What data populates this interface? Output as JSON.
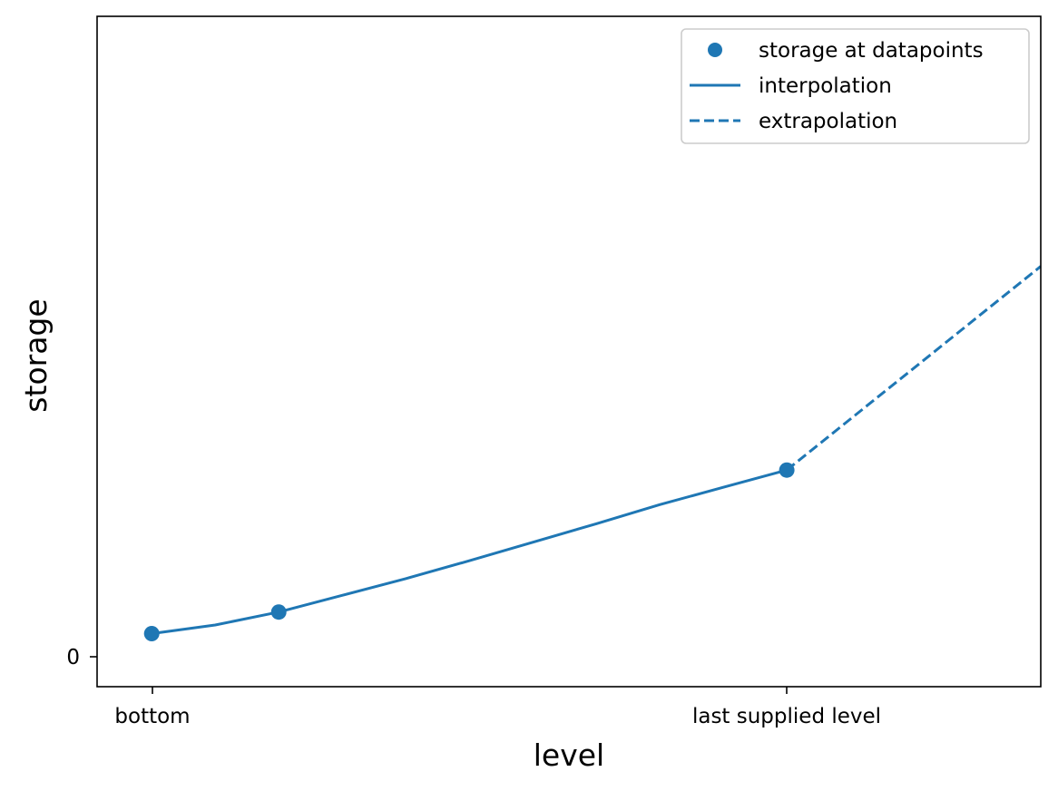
{
  "chart_data": {
    "type": "line",
    "xlabel": "level",
    "ylabel": "storage",
    "x_ticks": [
      "bottom",
      "last supplied level"
    ],
    "y_ticks": [
      "0"
    ],
    "color": "#1f77b4",
    "legend_position": "upper-right",
    "grid": false,
    "xlim": [
      -0.086,
      1.4
    ],
    "ylim": [
      -0.086,
      1.0
    ],
    "datapoints": {
      "name": "storage at datapoints",
      "x": [
        0.0,
        0.2,
        1.0
      ],
      "y": [
        0.0,
        0.035,
        0.265
      ]
    },
    "interpolation": {
      "name": "interpolation",
      "x": [
        0.0,
        0.1,
        0.2,
        0.3,
        0.4,
        0.5,
        0.6,
        0.7,
        0.8,
        0.9,
        1.0
      ],
      "y": [
        0.0,
        0.014,
        0.035,
        0.062,
        0.089,
        0.118,
        0.148,
        0.178,
        0.209,
        0.237,
        0.265
      ]
    },
    "extrapolation": {
      "name": "extrapolation",
      "x": [
        1.0,
        1.4
      ],
      "y": [
        0.265,
        0.595
      ]
    }
  }
}
